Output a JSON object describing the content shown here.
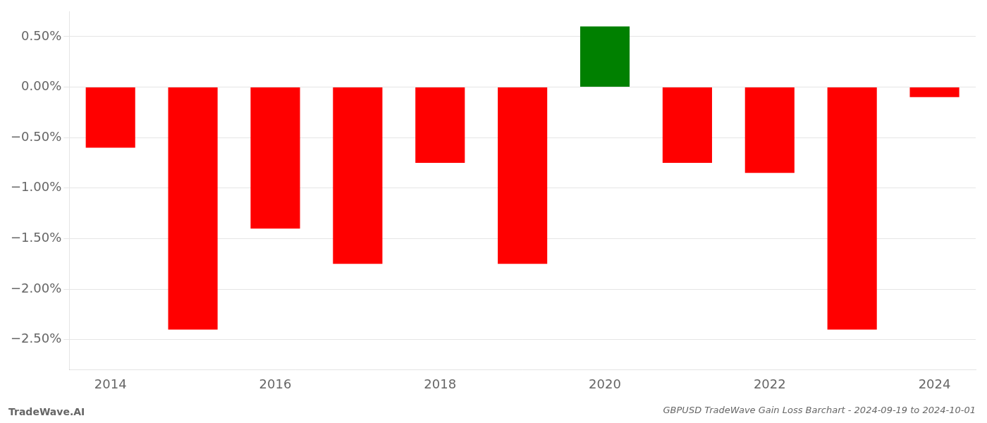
{
  "chart_data": {
    "type": "bar",
    "title": "GBPUSD TradeWave Gain Loss Barchart - 2024-09-19 to 2024-10-01",
    "annotations": [
      "TradeWave.AI"
    ],
    "categories": [
      "2014",
      null,
      "2016",
      null,
      "2018",
      null,
      "2020",
      null,
      "2022",
      null,
      "2024"
    ],
    "values": [
      -0.006,
      -0.024,
      -0.014,
      -0.0175,
      -0.0075,
      -0.0175,
      0.006,
      -0.0075,
      -0.0085,
      -0.024,
      -0.001
    ],
    "colors": [
      "red",
      "red",
      "red",
      "red",
      "red",
      "red",
      "green",
      "red",
      "red",
      "red",
      "red"
    ],
    "ylim": [
      -0.028,
      0.0075
    ],
    "yticks": [
      {
        "value": 0.005,
        "label": "0.50%"
      },
      {
        "value": 0.0,
        "label": "0.00%"
      },
      {
        "value": -0.005,
        "label": "−0.50%"
      },
      {
        "value": -0.01,
        "label": "−1.00%"
      },
      {
        "value": -0.015,
        "label": "−1.50%"
      },
      {
        "value": -0.02,
        "label": "−2.00%"
      },
      {
        "value": -0.025,
        "label": "−2.50%"
      }
    ],
    "grid": true
  }
}
